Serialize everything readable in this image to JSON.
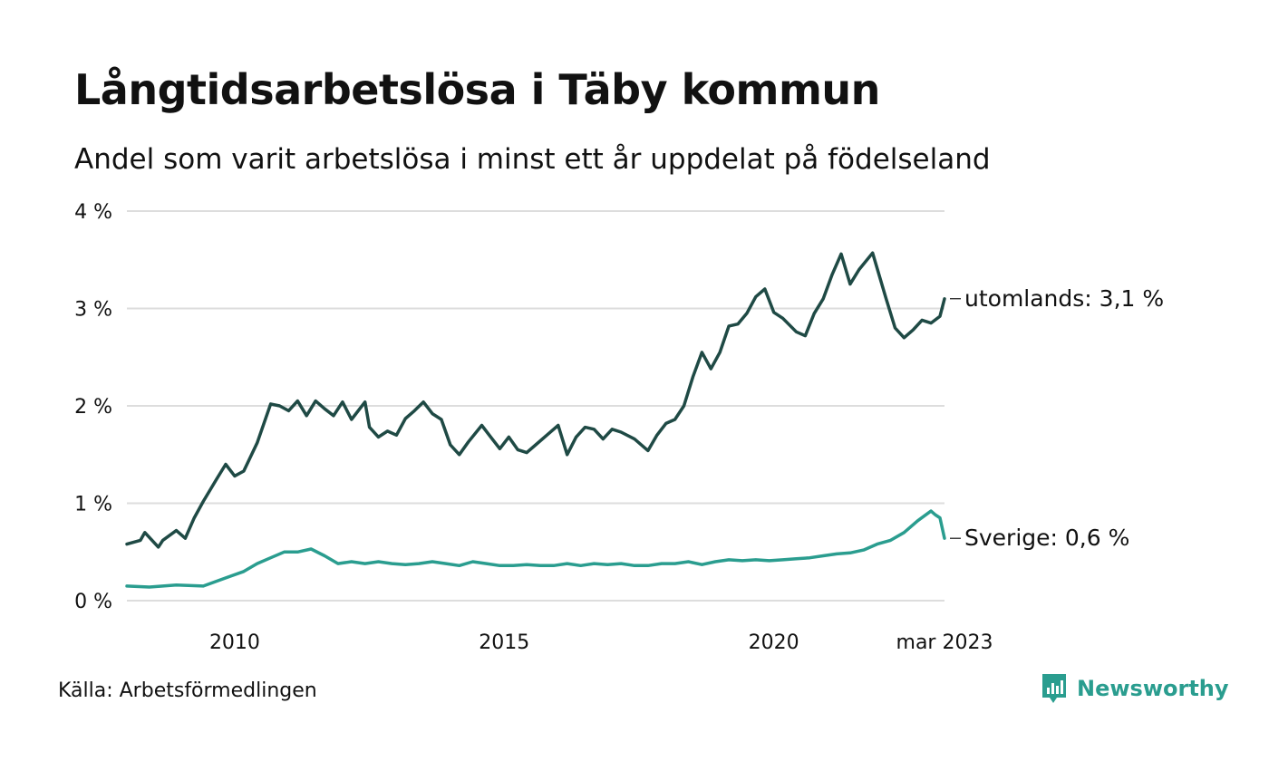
{
  "header": {
    "title": "Långtidsarbetslösa i Täby kommun",
    "subtitle": "Andel som varit arbetslösa i minst ett år uppdelat på födelseland"
  },
  "footer": {
    "source": "Källa: Arbetsförmedlingen",
    "brand": "Newsworthy"
  },
  "colors": {
    "utomlands": "#1f4a45",
    "sverige": "#2a9d8f",
    "grid": "#dddddd",
    "brand": "#2a9d8f"
  },
  "chart_data": {
    "type": "line",
    "x_start": "2008-01",
    "x_end": "2023-03",
    "xlim": [
      "2008-01",
      "2023-03"
    ],
    "ylim": [
      0,
      4
    ],
    "y_ticks": [
      0,
      1,
      2,
      3,
      4
    ],
    "y_tick_labels": [
      "0 %",
      "1 %",
      "2 %",
      "3 %",
      "4 %"
    ],
    "x_ticks": [
      "2010-01",
      "2015-01",
      "2020-01",
      "2023-03"
    ],
    "x_tick_labels": [
      "2010",
      "2015",
      "2020",
      "mar 2023"
    ],
    "grid": true,
    "series": [
      {
        "name": "utomlands",
        "end_label": "utomlands: 3,1 %",
        "points": [
          [
            "2008-01",
            0.58
          ],
          [
            "2008-04",
            0.62
          ],
          [
            "2008-05",
            0.7
          ],
          [
            "2008-08",
            0.55
          ],
          [
            "2008-09",
            0.62
          ],
          [
            "2008-12",
            0.72
          ],
          [
            "2009-02",
            0.64
          ],
          [
            "2009-04",
            0.85
          ],
          [
            "2009-06",
            1.02
          ],
          [
            "2009-09",
            1.25
          ],
          [
            "2009-11",
            1.4
          ],
          [
            "2010-01",
            1.28
          ],
          [
            "2010-03",
            1.33
          ],
          [
            "2010-06",
            1.62
          ],
          [
            "2010-09",
            2.02
          ],
          [
            "2010-11",
            2.0
          ],
          [
            "2011-01",
            1.95
          ],
          [
            "2011-03",
            2.05
          ],
          [
            "2011-05",
            1.9
          ],
          [
            "2011-07",
            2.05
          ],
          [
            "2011-09",
            1.97
          ],
          [
            "2011-11",
            1.9
          ],
          [
            "2012-01",
            2.04
          ],
          [
            "2012-03",
            1.86
          ],
          [
            "2012-06",
            2.04
          ],
          [
            "2012-07",
            1.78
          ],
          [
            "2012-09",
            1.68
          ],
          [
            "2012-11",
            1.74
          ],
          [
            "2013-01",
            1.7
          ],
          [
            "2013-03",
            1.87
          ],
          [
            "2013-05",
            1.95
          ],
          [
            "2013-07",
            2.04
          ],
          [
            "2013-09",
            1.92
          ],
          [
            "2013-11",
            1.86
          ],
          [
            "2014-01",
            1.6
          ],
          [
            "2014-03",
            1.5
          ],
          [
            "2014-05",
            1.63
          ],
          [
            "2014-08",
            1.8
          ],
          [
            "2014-10",
            1.68
          ],
          [
            "2014-12",
            1.56
          ],
          [
            "2015-02",
            1.68
          ],
          [
            "2015-04",
            1.55
          ],
          [
            "2015-06",
            1.52
          ],
          [
            "2015-08",
            1.6
          ],
          [
            "2015-11",
            1.72
          ],
          [
            "2016-01",
            1.8
          ],
          [
            "2016-03",
            1.5
          ],
          [
            "2016-05",
            1.68
          ],
          [
            "2016-07",
            1.78
          ],
          [
            "2016-09",
            1.76
          ],
          [
            "2016-11",
            1.66
          ],
          [
            "2017-01",
            1.76
          ],
          [
            "2017-03",
            1.73
          ],
          [
            "2017-06",
            1.66
          ],
          [
            "2017-09",
            1.54
          ],
          [
            "2017-11",
            1.7
          ],
          [
            "2018-01",
            1.82
          ],
          [
            "2018-03",
            1.86
          ],
          [
            "2018-05",
            2.0
          ],
          [
            "2018-07",
            2.3
          ],
          [
            "2018-09",
            2.55
          ],
          [
            "2018-11",
            2.38
          ],
          [
            "2019-01",
            2.55
          ],
          [
            "2019-03",
            2.82
          ],
          [
            "2019-05",
            2.84
          ],
          [
            "2019-07",
            2.95
          ],
          [
            "2019-09",
            3.12
          ],
          [
            "2019-11",
            3.2
          ],
          [
            "2020-01",
            2.96
          ],
          [
            "2020-03",
            2.9
          ],
          [
            "2020-06",
            2.76
          ],
          [
            "2020-08",
            2.72
          ],
          [
            "2020-10",
            2.95
          ],
          [
            "2020-12",
            3.1
          ],
          [
            "2021-02",
            3.35
          ],
          [
            "2021-04",
            3.56
          ],
          [
            "2021-06",
            3.25
          ],
          [
            "2021-08",
            3.4
          ],
          [
            "2021-11",
            3.57
          ],
          [
            "2022-02",
            3.1
          ],
          [
            "2022-04",
            2.8
          ],
          [
            "2022-06",
            2.7
          ],
          [
            "2022-08",
            2.78
          ],
          [
            "2022-10",
            2.88
          ],
          [
            "2022-12",
            2.85
          ],
          [
            "2023-02",
            2.92
          ],
          [
            "2023-03",
            3.1
          ]
        ]
      },
      {
        "name": "Sverige",
        "end_label": "Sverige: 0,6 %",
        "points": [
          [
            "2008-01",
            0.15
          ],
          [
            "2008-06",
            0.14
          ],
          [
            "2008-12",
            0.16
          ],
          [
            "2009-06",
            0.15
          ],
          [
            "2009-09",
            0.2
          ],
          [
            "2009-12",
            0.25
          ],
          [
            "2010-03",
            0.3
          ],
          [
            "2010-06",
            0.38
          ],
          [
            "2010-09",
            0.44
          ],
          [
            "2010-12",
            0.5
          ],
          [
            "2011-03",
            0.5
          ],
          [
            "2011-06",
            0.53
          ],
          [
            "2011-09",
            0.46
          ],
          [
            "2011-12",
            0.38
          ],
          [
            "2012-03",
            0.4
          ],
          [
            "2012-06",
            0.38
          ],
          [
            "2012-09",
            0.4
          ],
          [
            "2012-12",
            0.38
          ],
          [
            "2013-03",
            0.37
          ],
          [
            "2013-06",
            0.38
          ],
          [
            "2013-09",
            0.4
          ],
          [
            "2013-12",
            0.38
          ],
          [
            "2014-03",
            0.36
          ],
          [
            "2014-06",
            0.4
          ],
          [
            "2014-09",
            0.38
          ],
          [
            "2014-12",
            0.36
          ],
          [
            "2015-03",
            0.36
          ],
          [
            "2015-06",
            0.37
          ],
          [
            "2015-09",
            0.36
          ],
          [
            "2015-12",
            0.36
          ],
          [
            "2016-03",
            0.38
          ],
          [
            "2016-06",
            0.36
          ],
          [
            "2016-09",
            0.38
          ],
          [
            "2016-12",
            0.37
          ],
          [
            "2017-03",
            0.38
          ],
          [
            "2017-06",
            0.36
          ],
          [
            "2017-09",
            0.36
          ],
          [
            "2017-12",
            0.38
          ],
          [
            "2018-03",
            0.38
          ],
          [
            "2018-06",
            0.4
          ],
          [
            "2018-09",
            0.37
          ],
          [
            "2018-12",
            0.4
          ],
          [
            "2019-03",
            0.42
          ],
          [
            "2019-06",
            0.41
          ],
          [
            "2019-09",
            0.42
          ],
          [
            "2019-12",
            0.41
          ],
          [
            "2020-03",
            0.42
          ],
          [
            "2020-06",
            0.43
          ],
          [
            "2020-09",
            0.44
          ],
          [
            "2020-12",
            0.46
          ],
          [
            "2021-03",
            0.48
          ],
          [
            "2021-06",
            0.49
          ],
          [
            "2021-09",
            0.52
          ],
          [
            "2021-12",
            0.58
          ],
          [
            "2022-03",
            0.62
          ],
          [
            "2022-06",
            0.7
          ],
          [
            "2022-09",
            0.82
          ],
          [
            "2022-12",
            0.92
          ],
          [
            "2023-01",
            0.88
          ],
          [
            "2023-02",
            0.85
          ],
          [
            "2023-03",
            0.64
          ]
        ]
      }
    ]
  }
}
